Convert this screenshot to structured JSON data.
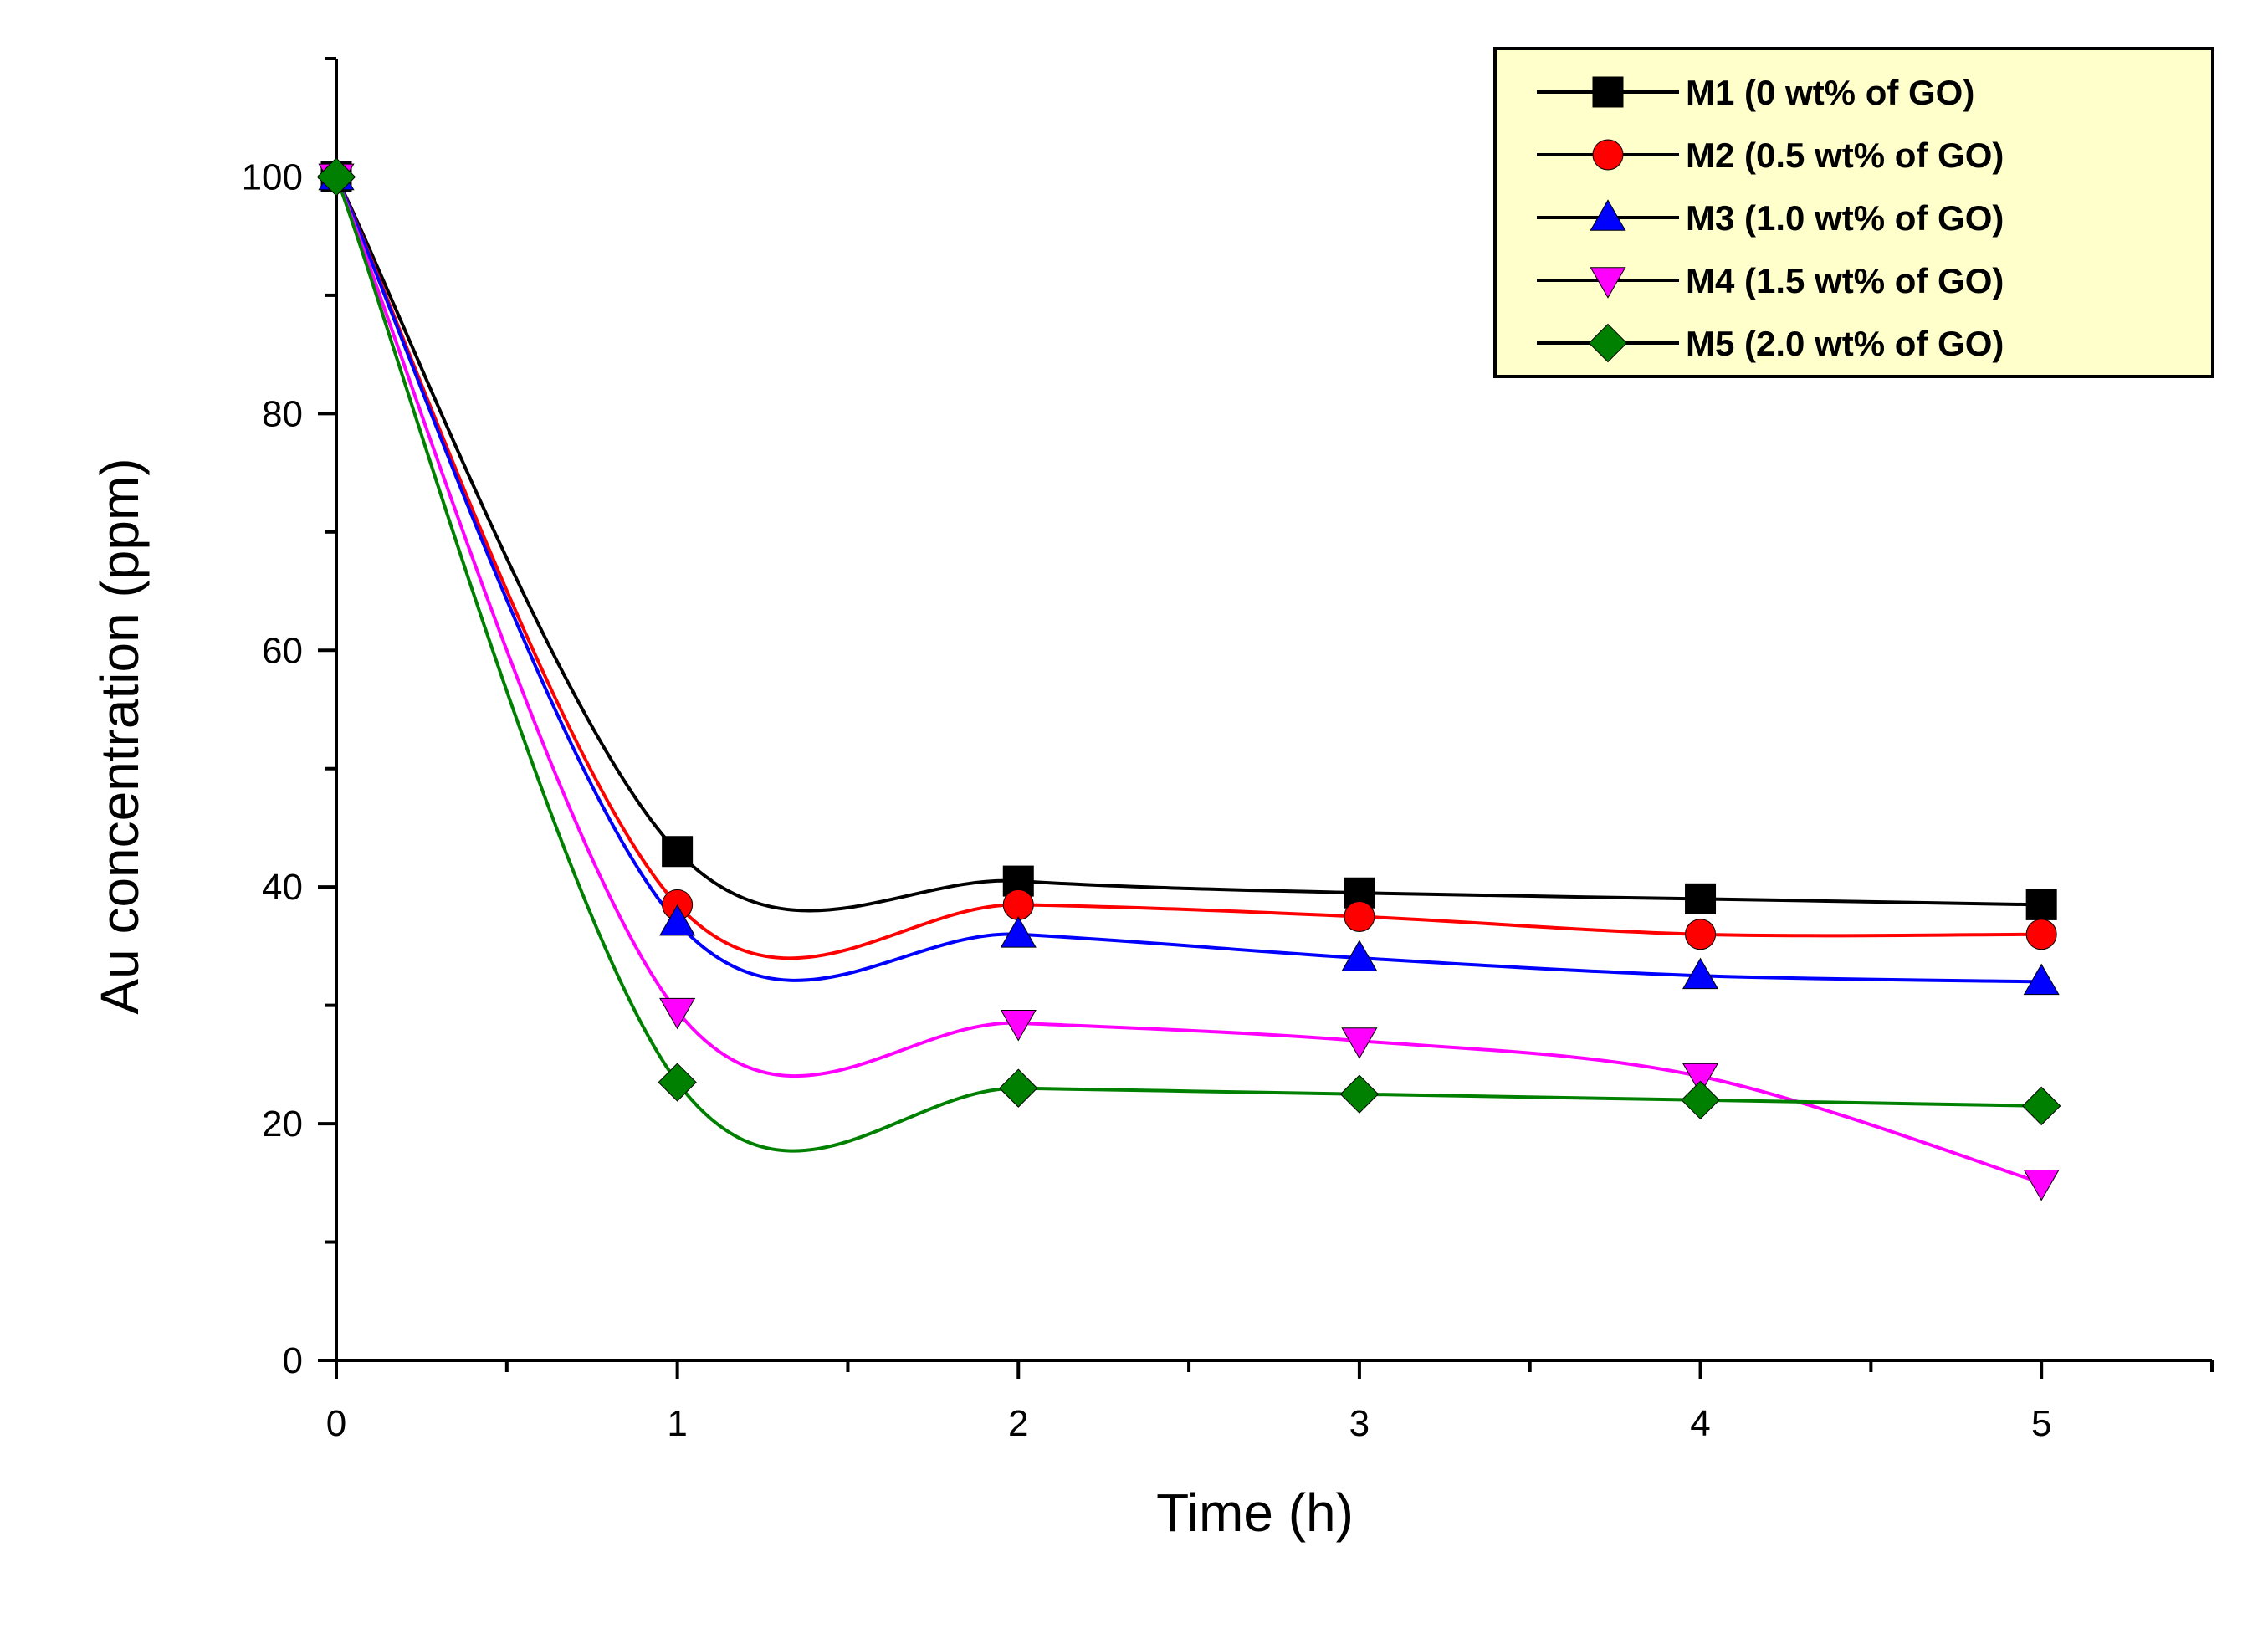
{
  "chart_data": {
    "type": "line",
    "title": "",
    "xlabel": "Time (h)",
    "ylabel": "Au concentration (ppm)",
    "xlim": [
      0,
      5.5
    ],
    "ylim": [
      0,
      110
    ],
    "xticks": [
      "0",
      "1",
      "2",
      "3",
      "4",
      "5"
    ],
    "yticks": [
      "0",
      "20",
      "40",
      "60",
      "80",
      "100"
    ],
    "legend_position": "top-right",
    "x": [
      0,
      1,
      2,
      3,
      4,
      5
    ],
    "series": [
      {
        "name": "M1 (0 wt% of GO)",
        "color": "#000000",
        "marker": "square",
        "values": [
          100,
          43,
          40.5,
          39.5,
          39,
          38.5
        ]
      },
      {
        "name": "M2 (0.5 wt% of GO)",
        "color": "#ff0000",
        "marker": "circle",
        "values": [
          100,
          38.5,
          38.5,
          37.5,
          36,
          36
        ]
      },
      {
        "name": "M3 (1.0 wt% of GO)",
        "color": "#0000ff",
        "marker": "triangle-up",
        "values": [
          100,
          37,
          36,
          34,
          32.5,
          32
        ]
      },
      {
        "name": "M4 (1.5 wt% of GO)",
        "color": "#ff00ff",
        "marker": "triangle-down",
        "values": [
          100,
          29.5,
          28.5,
          27,
          24,
          15
        ]
      },
      {
        "name": "M5 (2.0 wt% of GO)",
        "color": "#008000",
        "marker": "diamond",
        "values": [
          100,
          23.5,
          23,
          22.5,
          22,
          21.5
        ]
      }
    ]
  }
}
